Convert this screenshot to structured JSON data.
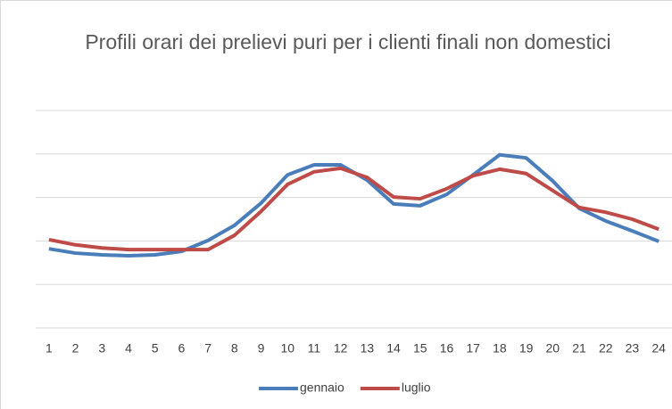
{
  "chart_data": {
    "type": "line",
    "title": "Profili orari dei prelievi puri per i clienti finali non domestici",
    "categories": [
      "1",
      "2",
      "3",
      "4",
      "5",
      "6",
      "7",
      "8",
      "9",
      "10",
      "11",
      "12",
      "13",
      "14",
      "15",
      "16",
      "17",
      "18",
      "19",
      "20",
      "21",
      "22",
      "23",
      "24"
    ],
    "series": [
      {
        "name": "gennaio",
        "color": "#4a7ebb",
        "values": [
          1.82,
          1.72,
          1.68,
          1.66,
          1.68,
          1.76,
          2.01,
          2.36,
          2.87,
          3.52,
          3.75,
          3.75,
          3.4,
          2.85,
          2.81,
          3.07,
          3.52,
          3.98,
          3.91,
          3.38,
          2.75,
          2.46,
          2.23,
          1.99
        ]
      },
      {
        "name": "luglio",
        "color": "#be4b48",
        "values": [
          2.03,
          1.91,
          1.84,
          1.8,
          1.8,
          1.8,
          1.8,
          2.13,
          2.68,
          3.3,
          3.59,
          3.67,
          3.46,
          3.01,
          2.97,
          3.2,
          3.5,
          3.65,
          3.55,
          3.16,
          2.77,
          2.66,
          2.5,
          2.27
        ]
      }
    ],
    "ylim": [
      0,
      5
    ],
    "yticks": [
      0,
      1,
      2,
      3,
      4,
      5
    ],
    "grid": true,
    "legend": "bottom"
  }
}
